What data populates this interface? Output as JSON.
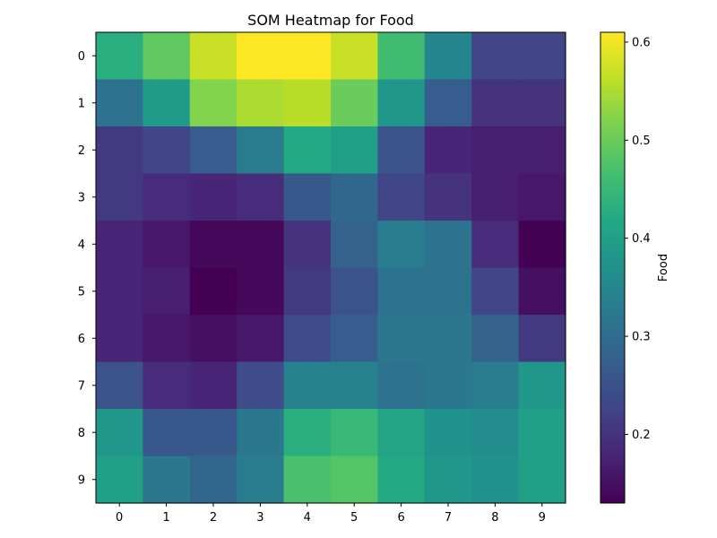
{
  "chart_data": {
    "type": "heatmap",
    "title": "SOM Heatmap for Food",
    "xlabel": "",
    "ylabel": "",
    "x_ticks": [
      "0",
      "1",
      "2",
      "3",
      "4",
      "5",
      "6",
      "7",
      "8",
      "9"
    ],
    "y_ticks": [
      "0",
      "1",
      "2",
      "3",
      "4",
      "5",
      "6",
      "7",
      "8",
      "9"
    ],
    "colormap": "viridis",
    "colorbar": {
      "label": "Food",
      "range": [
        0.13,
        0.61
      ],
      "ticks": [
        0.2,
        0.3,
        0.4,
        0.5,
        0.6
      ],
      "tick_labels": [
        "0.2",
        "0.3",
        "0.4",
        "0.5",
        "0.6"
      ]
    },
    "values": [
      [
        0.43,
        0.49,
        0.57,
        0.61,
        0.61,
        0.57,
        0.46,
        0.35,
        0.23,
        0.23
      ],
      [
        0.31,
        0.39,
        0.52,
        0.55,
        0.56,
        0.5,
        0.38,
        0.27,
        0.2,
        0.2
      ],
      [
        0.21,
        0.23,
        0.27,
        0.33,
        0.42,
        0.4,
        0.25,
        0.18,
        0.17,
        0.17
      ],
      [
        0.21,
        0.19,
        0.18,
        0.19,
        0.26,
        0.29,
        0.23,
        0.2,
        0.17,
        0.16
      ],
      [
        0.18,
        0.16,
        0.14,
        0.14,
        0.2,
        0.28,
        0.33,
        0.31,
        0.19,
        0.13
      ],
      [
        0.18,
        0.17,
        0.13,
        0.14,
        0.21,
        0.25,
        0.31,
        0.31,
        0.23,
        0.15
      ],
      [
        0.18,
        0.16,
        0.15,
        0.16,
        0.24,
        0.27,
        0.32,
        0.32,
        0.28,
        0.21
      ],
      [
        0.25,
        0.19,
        0.18,
        0.24,
        0.34,
        0.34,
        0.31,
        0.32,
        0.33,
        0.38
      ],
      [
        0.38,
        0.26,
        0.26,
        0.32,
        0.43,
        0.45,
        0.41,
        0.37,
        0.36,
        0.4
      ],
      [
        0.4,
        0.32,
        0.29,
        0.33,
        0.47,
        0.48,
        0.42,
        0.38,
        0.37,
        0.4
      ]
    ]
  }
}
